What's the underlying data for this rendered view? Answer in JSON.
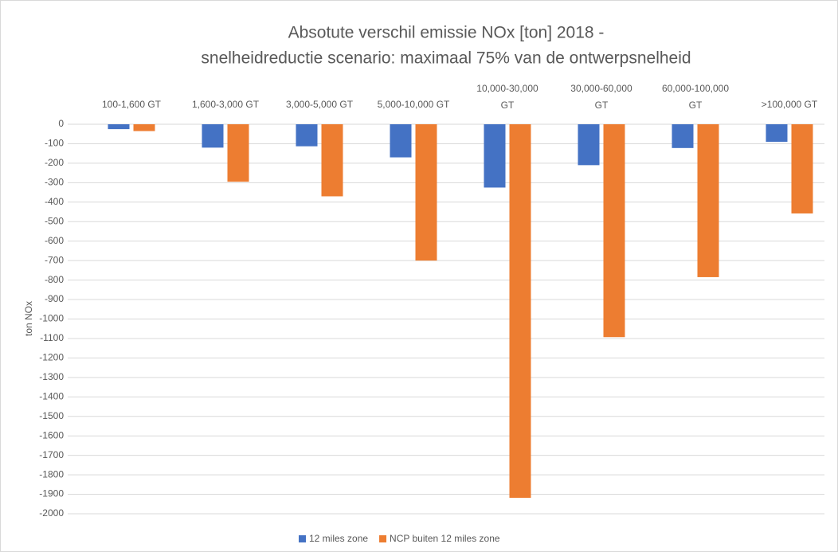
{
  "chart_data": {
    "type": "bar",
    "title": [
      "Absotute verschil emissie NOx [ton] 2018 -",
      "snelheidreductie scenario: maximaal 75% van de ontwerpsnelheid"
    ],
    "y_label": "ton NOx",
    "categories": [
      "100-1,600 GT",
      "1,600-3,000 GT",
      "3,000-5,000 GT",
      "5,000-10,000 GT",
      "10,000-30,000 GT",
      "30,000-60,000 GT",
      "60,000-100,000 GT",
      ">100,000 GT"
    ],
    "series": [
      {
        "name": "12 miles zone",
        "color": "#4472c4",
        "values": [
          -25,
          -120,
          -113,
          -170,
          -325,
          -210,
          -122,
          -90
        ]
      },
      {
        "name": "NCP buiten 12 miles zone",
        "color": "#ed7d31",
        "values": [
          -35,
          -295,
          -370,
          -700,
          -1918,
          -1093,
          -785,
          -458
        ]
      }
    ],
    "ylim": [
      -2000,
      0
    ],
    "yticks": [
      0,
      -100,
      -200,
      -300,
      -400,
      -500,
      -600,
      -700,
      -800,
      -900,
      -1000,
      -1100,
      -1200,
      -1300,
      -1400,
      -1500,
      -1600,
      -1700,
      -1800,
      -1900,
      -2000
    ],
    "grid": true,
    "legend": "bottom"
  }
}
